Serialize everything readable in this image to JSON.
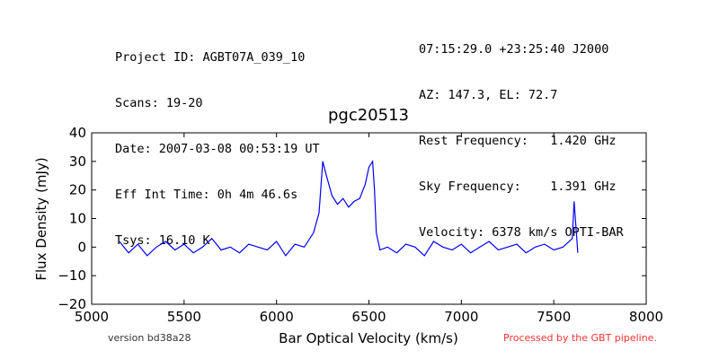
{
  "header": {
    "left_lines": [
      "Project ID: AGBT07A_039_10",
      "Scans: 19-20",
      "Date: 2007-03-08 00:53:19 UT",
      "Eff Int Time: 0h 4m 46.6s",
      "Tsys: 16.10 K"
    ],
    "right_lines": [
      "07:15:29.0 +23:25:40 J2000",
      "AZ: 147.3, EL: 72.7",
      "Rest Frequency:   1.420 GHz",
      "Sky Frequency:    1.391 GHz",
      "Velocity: 6378 km/s OPTI-BAR"
    ]
  },
  "footer": {
    "version": "version bd38a28",
    "processed": "Processed by the GBT pipeline."
  },
  "colors": {
    "series": "#0000ff",
    "processed_text": "#ff3333"
  },
  "chart_data": {
    "type": "line",
    "title": "pgc20513",
    "xlabel": "Bar Optical Velocity (km/s)",
    "ylabel": "Flux Density (mJy)",
    "xlim": [
      5000,
      8000
    ],
    "ylim": [
      -20,
      40
    ],
    "xticks": [
      5000,
      5500,
      6000,
      6500,
      7000,
      7500,
      8000
    ],
    "yticks": [
      -20,
      -10,
      0,
      10,
      20,
      30,
      40
    ],
    "grid": false,
    "series": [
      {
        "x": [
          5150,
          5200,
          5250,
          5300,
          5350,
          5400,
          5450,
          5500,
          5550,
          5600,
          5650,
          5700,
          5750,
          5800,
          5850,
          5900,
          5950,
          6000,
          6050,
          6100,
          6150,
          6200,
          6230,
          6250,
          6270,
          6300,
          6330,
          6360,
          6390,
          6420,
          6450,
          6480,
          6500,
          6520,
          6530,
          6540,
          6560,
          6600,
          6650,
          6700,
          6750,
          6800,
          6850,
          6900,
          6950,
          7000,
          7050,
          7100,
          7150,
          7200,
          7250,
          7300,
          7350,
          7400,
          7450,
          7500,
          7550,
          7600,
          7610,
          7630
        ],
        "y": [
          2,
          -2,
          1,
          -3,
          0,
          2,
          -1,
          1,
          -2,
          0,
          3,
          -1,
          0,
          -2,
          1,
          0,
          -1,
          2,
          -3,
          1,
          0,
          5,
          12,
          30,
          25,
          18,
          15,
          17,
          14,
          16,
          17,
          22,
          28,
          30,
          20,
          5,
          -1,
          0,
          -2,
          1,
          0,
          -3,
          2,
          0,
          -1,
          1,
          -2,
          0,
          2,
          -1,
          0,
          1,
          -2,
          0,
          1,
          -1,
          0,
          3,
          16,
          -2
        ]
      }
    ]
  }
}
